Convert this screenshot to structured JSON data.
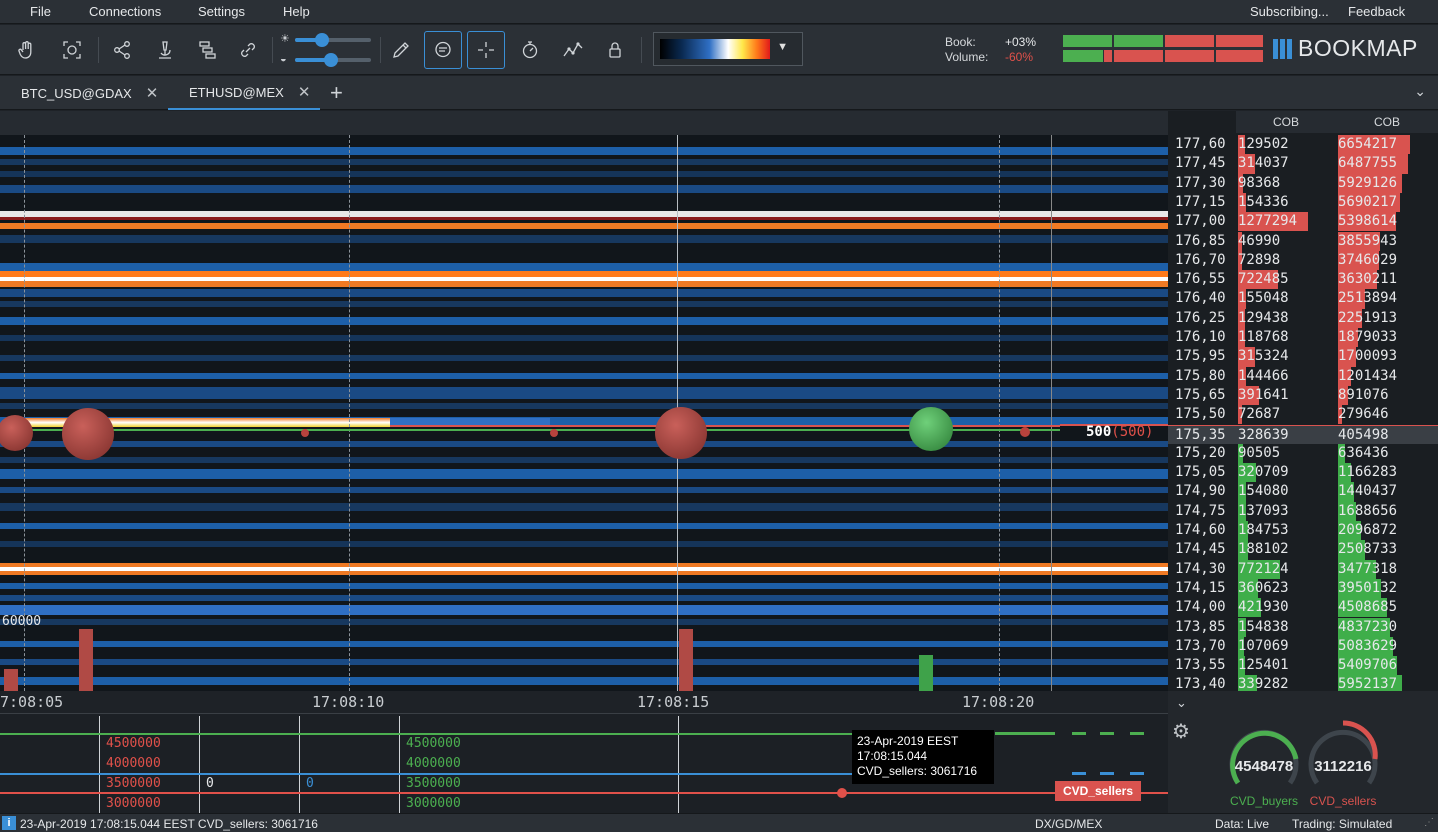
{
  "menu": {
    "file": "File",
    "connections": "Connections",
    "settings": "Settings",
    "help": "Help",
    "subscribing": "Subscribing...",
    "feedback": "Feedback"
  },
  "toolbar": {
    "book_label": "Book:",
    "volume_label": "Volume:",
    "book_value": "+03%",
    "volume_value": "-60%",
    "brightness_level": 0.35,
    "contrast_level": 0.48,
    "icons": [
      "hand-icon",
      "zoom-fit-icon",
      "share-icon",
      "microscope-icon",
      "layers-icon",
      "link-icon",
      "pencil-icon",
      "chat-bubble-icon",
      "crosshair-icon",
      "stopwatch-icon",
      "line-chart-icon",
      "lock-icon"
    ],
    "logo": "BOOKMAP"
  },
  "tabs": [
    {
      "label": "BTC_USD@GDAX"
    },
    {
      "label": "ETHUSD@MEX"
    }
  ],
  "heatmap": {
    "last_trade_size": "500",
    "last_trade_paren": "(500)",
    "volume_scale_label": "60000",
    "time_ticks": [
      "7:08:05",
      "17:08:10",
      "17:08:15",
      "17:08:20"
    ]
  },
  "order_book": {
    "col1_header": "COB",
    "col2_header": "COB",
    "rows": [
      {
        "price": "177,60",
        "cob1": "129502",
        "cob2": "6654217"
      },
      {
        "price": "177,45",
        "cob1": "314037",
        "cob2": "6487755"
      },
      {
        "price": "177,30",
        "cob1": "98368",
        "cob2": "5929126"
      },
      {
        "price": "177,15",
        "cob1": "154336",
        "cob2": "5690217"
      },
      {
        "price": "177,00",
        "cob1": "1277294",
        "cob2": "5398614"
      },
      {
        "price": "176,85",
        "cob1": "46990",
        "cob2": "3855943"
      },
      {
        "price": "176,70",
        "cob1": "72898",
        "cob2": "3746029"
      },
      {
        "price": "176,55",
        "cob1": "722485",
        "cob2": "3630211"
      },
      {
        "price": "176,40",
        "cob1": "155048",
        "cob2": "2513894"
      },
      {
        "price": "176,25",
        "cob1": "129438",
        "cob2": "2251913"
      },
      {
        "price": "176,10",
        "cob1": "118768",
        "cob2": "1879033"
      },
      {
        "price": "175,95",
        "cob1": "315324",
        "cob2": "1700093"
      },
      {
        "price": "175,80",
        "cob1": "144466",
        "cob2": "1201434"
      },
      {
        "price": "175,65",
        "cob1": "391641",
        "cob2": "891076"
      },
      {
        "price": "175,50",
        "cob1": "72687",
        "cob2": "279646"
      },
      {
        "price": "175,35",
        "cob1": "328639",
        "cob2": "405498"
      },
      {
        "price": "175,20",
        "cob1": "90505",
        "cob2": "636436"
      },
      {
        "price": "175,05",
        "cob1": "320709",
        "cob2": "1166283"
      },
      {
        "price": "174,90",
        "cob1": "154080",
        "cob2": "1440437"
      },
      {
        "price": "174,75",
        "cob1": "137093",
        "cob2": "1688656"
      },
      {
        "price": "174,60",
        "cob1": "184753",
        "cob2": "2096872"
      },
      {
        "price": "174,45",
        "cob1": "188102",
        "cob2": "2508733"
      },
      {
        "price": "174,30",
        "cob1": "772124",
        "cob2": "3477318"
      },
      {
        "price": "174,15",
        "cob1": "360623",
        "cob2": "3950132"
      },
      {
        "price": "174,00",
        "cob1": "421930",
        "cob2": "4508685"
      },
      {
        "price": "173,85",
        "cob1": "154838",
        "cob2": "4837230"
      },
      {
        "price": "173,70",
        "cob1": "107069",
        "cob2": "5083629"
      },
      {
        "price": "173,55",
        "cob1": "125401",
        "cob2": "5409706"
      },
      {
        "price": "173,40",
        "cob1": "339282",
        "cob2": "5952137"
      }
    ]
  },
  "indicator": {
    "sellers_labels": [
      "4500000",
      "4000000",
      "3500000",
      "3000000"
    ],
    "buyers_labels": [
      "4500000",
      "4000000",
      "3500000",
      "3000000"
    ],
    "zero_a": "0",
    "zero_b": "0",
    "tooltip_date": "23-Apr-2019 EEST",
    "tooltip_time": "17:08:15.044",
    "tooltip_value": "CVD_sellers: 3061716",
    "tag": "CVD_sellers"
  },
  "gauges": {
    "buyers_value": "4548478",
    "sellers_value": "3112216",
    "buyers_label": "CVD_buyers",
    "sellers_label": "CVD_sellers",
    "buyers_color": "#4caf50",
    "sellers_color": "#d9534f"
  },
  "status": {
    "message": "23-Apr-2019 17:08:15.044 EEST  CVD_sellers: 3061716",
    "source": "DX/GD/MEX",
    "data": "Data: Live",
    "trading": "Trading: Simulated"
  },
  "colors": {
    "accent": "#3a8fd6",
    "ask": "#d9534f",
    "bid": "#4caf50"
  }
}
